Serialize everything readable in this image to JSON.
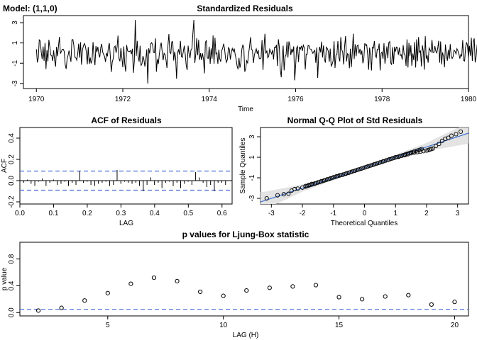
{
  "model_label": "Model: (1,1,0)",
  "colors": {
    "line": "#000000",
    "ref_dash": "#4a6fd8",
    "qq_line": "#3a6fcf",
    "band": "#e3e3e3"
  },
  "chart_data": [
    {
      "id": "std-residuals",
      "type": "line",
      "title": "Standardized Residuals",
      "xlabel": "Time",
      "ylabel": "",
      "xlim": [
        1969.7,
        1980.0
      ],
      "ylim": [
        -3.5,
        3.7
      ],
      "xticks": [
        1970,
        1972,
        1974,
        1976,
        1978,
        1980
      ],
      "yticks": [
        -3,
        -1,
        1,
        3
      ],
      "x_start": 1970.0,
      "x_step": 0.022222,
      "values": [
        0.39,
        -0.92,
        -0.49,
        1.3,
        1.19,
        0.13,
        -0.6,
        0.65,
        -0.77,
        1.0,
        -1.58,
        0.29,
        -0.82,
        1.31,
        0.6,
        -0.21,
        -0.24,
        -0.78,
        0.26,
        -0.73,
        -1.33,
        0.62,
        -0.32,
        0.67,
        1.6,
        -0.05,
        0.15,
        0.38,
        0.38,
        0.16,
        -1.15,
        -1.56,
        -0.61,
        -0.21,
        0.24,
        -0.32,
        -0.86,
        1.31,
        1.34,
        0.76,
        -0.41,
        -0.44,
        -0.69,
        -0.11,
        0.93,
        -0.46,
        1.07,
        -1.15,
        0.33,
        0.72,
        0.95,
        0.69,
        0.13,
        -1.1,
        0.6,
        -1.07,
        -0.44,
        -1.02,
        -0.68,
        1.09,
        -0.41,
        -1.2,
        0.69,
        0.1,
        0.62,
        -0.1,
        -0.43,
        0.53,
        0.91,
        0.11,
        -0.13,
        -0.35,
        -0.87,
        0.01,
        -0.32,
        0.63,
        0.98,
        -0.3,
        -1.86,
        -0.88,
        -0.55,
        0.55,
        0.7,
        0.03,
        0.55,
        1.72,
        -0.54,
        -0.81,
        0.5,
        -0.45,
        -1.4,
        0.66,
        -1.05,
        -1.83,
        0.8,
        0.22,
        0.17,
        0.15,
        0.25,
        -0.1,
        0.43,
        -1.95,
        -0.81,
        3.27,
        -0.27,
        1.21,
        -0.37,
        -0.84,
        0.73,
        -1.24,
        -1.03,
        -0.29,
        -0.66,
        -1.33,
        -0.58,
        0.37,
        -3.0,
        0.47,
        -0.04,
        0.91,
        1.03,
        0.84,
        0.06,
        0.04,
        1.45,
        -1.84,
        -0.59,
        -1.08,
        -0.15,
        0.64,
        1.03,
        0.15,
        -0.71,
        -0.02,
        -0.13,
        -0.68,
        -1.48,
        0.73,
        1.88,
        0.06,
        -0.05,
        1.12,
        1.13,
        -0.74,
        0.14,
        -0.44,
        -2.53,
        -0.06,
        0.38,
        -0.16,
        1.2,
        -0.32,
        -0.43,
        0.15,
        0.73,
        -0.1,
        -1.19,
        -1.67,
        0.73,
        -0.06,
        -0.49,
        0.32,
        0.44,
        1.96,
        3.28,
        -0.98,
        -0.1,
        1.46,
        -0.22,
        1.31,
        -0.67,
        -0.01,
        -0.69,
        -0.03,
        -0.61,
        -2.0,
        1.05,
        1.26,
        -0.48,
        -0.53,
        0.63,
        -1.07,
        0.46,
        -0.55,
        1.74,
        -1.05,
        1.51,
        -0.08,
        0.01,
        -1.07,
        0.34,
        -0.59,
        -0.85,
        0.22,
        0.49,
        0.92,
        0.42,
        -0.53,
        -0.91,
        -0.58,
        0.54,
        0.39,
        -0.63,
        0.06,
        0.46,
        0.16,
        0.45,
        -0.12,
        -0.6,
        -1.26,
        -1.59,
        -0.47,
        -1.44,
        -0.92,
        0.4,
        0.79,
        0.6,
        -1.84,
        -1.55,
        -0.76,
        -0.97,
        -0.1,
        0.66,
        1.57,
        0.34,
        0.31,
        -0.98,
        -0.2,
        0.17,
        0.42,
        -0.07,
        0.31,
        -0.52,
        -0.57,
        -0.48,
        1.28,
        -1.66,
        0.47,
        1.91,
        -0.05,
        0.25,
        -0.46,
        -0.29,
        0.38,
        0.14,
        -0.08,
        0.31,
        -0.63,
        0.57,
        0.52,
        0.81,
        -1.27,
        1.36,
        0.61,
        -1.58,
        -2.39,
        -0.54,
        0.73,
        -1.71,
        -0.36,
        -0.2,
        1.14,
        -0.45,
        1.15,
        0.72,
        -0.19,
        0.42,
        0.06,
        0.66,
        -2.69,
        -1.28,
        0.49,
        0.66,
        -0.88,
        0.61,
        0.41,
        0.71,
        0.21,
        0.78,
        0.54,
        -1.62,
        -0.1,
        -0.12,
        0.76,
        0.72,
        0.4,
        0.39,
        0.17,
        -0.03,
        0.16,
        0.27,
        -0.96,
        0.55,
        -2.45,
        -0.15,
        0.62,
        0.07,
        1.13,
        -0.44,
        0.74,
        -0.6,
        -0.94,
        0.58,
        0.45,
        0.18,
        -0.86,
        0.44,
        -1.28,
        -1.1,
        -0.78,
        1.17,
        -1.47,
        -0.21,
        -0.13,
        1.19,
        -0.42,
        -0.82,
        1.57,
        0.35,
        0.1,
        -1.12,
        0.68,
        1.68,
        -0.82,
        -0.06,
        -0.12,
        -1.5,
        0.43,
        -1.39,
        0.02,
        1.91,
        -0.59,
        0.87,
        -0.32,
        0.69,
        0.79,
        -0.04,
        0.42,
        -0.18,
        0.25,
        -1.01,
        -0.58,
        0.96,
        0.76,
        0.83,
        -0.15,
        -1.65,
        0.53,
        -0.24,
        -1.72,
        0.58,
        0.49,
        1.19,
        -0.23,
        -0.43,
        0.37,
        0.34,
        0.94,
        -1.72,
        -0.03,
        0.1,
        -0.58,
        0.97,
        -1.04,
        -0.21,
        0.66,
        -0.51,
        1.03,
        1.14,
        -0.96,
        -1.16,
        0.58,
        -1.05,
        0.63,
        0.15,
        0.59,
        0.53,
        -0.18,
        0.54,
        -0.24,
        -0.16,
        -0.65,
        0.78,
        -0.13,
        -0.18,
        -1.27,
        1.35,
        -1.43,
        1.01,
        -0.32,
        0.77,
        -1.25,
        -0.04,
        -0.69,
        1.09,
        -1.43,
        1.36,
        -0.8,
        1.58,
        0.03,
        0.25,
        -1.31,
        0.77,
        0.15,
        -1.64,
        1.66,
        -0.55,
        -0.23,
        -0.95,
        0.5,
        0.31,
        0.12,
        1.3,
        0.06,
        0.06,
        0.69,
        0.19,
        0.01,
        0.5,
        1.21,
        -0.95,
        1.15,
        -1.11,
        0.06,
        -0.34,
        -1.39,
        0.85,
        -0.19,
        -0.76,
        0.32,
        -0.58,
        0.88,
        -0.28,
        -0.55,
        -0.34,
        0.28,
        0.17,
        -0.08,
        0.43,
        0.22,
        -0.07,
        -0.54,
        -0.14,
        -0.28,
        1.28,
        -0.74,
        -0.78,
        0.58,
        1.06,
        0.73,
        -0.45,
        0.71,
        -0.26,
        1.51,
        -0.77,
        1.15,
        1.44,
        -0.92,
        -0.32,
        0.82,
        0.94,
        -0.58,
        0.67,
        -0.99,
        -0.11,
        1.24,
        -0.79,
        1.17,
        -0.49,
        -1.54,
        1.27,
        -0.71,
        -0.35,
        -0.26,
        0.29,
        0.09,
        -0.54,
        0.39,
        -0.03,
        0.49,
        0.9,
        -0.54,
        -0.78,
        -0.38,
        0.69,
        0.58,
        -0.72,
        0.16,
        1.31,
        -0.94,
        -0.08,
        0.01,
        0.95,
        -0.29,
        -0.69,
        1.43,
        -1.18,
        0.4,
        -0.93,
        0.38,
        -0.32,
        -1.1,
        0.08,
        0.25,
        0.56,
        1.78,
        -0.72,
        -0.09,
        0.77,
        1.46,
        -0.47,
        0.28,
        -1.39,
        0.54,
        0.34,
        -0.91,
        -0.54,
        0.03,
        1.18,
        -0.19,
        -0.19,
        0.2,
        0.91,
        -0.79,
        -1.14,
        0.95,
        -0.02,
        -1.8,
        -0.33,
        0.28,
        -1.58,
        0.91,
        -0.62,
        0.46,
        0.71,
        -0.69,
        -1.46,
        0.17,
        0.55,
        -0.82,
        0.42,
        0.13,
        -0.36,
        -0.05,
        0.02,
        0.47,
        0.39,
        -0.36,
        0.82,
        -1.72,
        -0.22,
        -1.14,
        1.15,
        -0.08,
        -1.58,
        -0.35,
        0.36,
        0.39,
        0.66,
        -0.31,
        -1.31,
        -0.6,
        -0.13,
        0.06,
        -0.37,
        1.15,
        -0.53,
        -0.41,
        0.44,
        -1.12,
        0.19,
        -0.22,
        -0.14,
        -0.05,
        0.46,
        1.28,
        1.34
      ]
    },
    {
      "id": "acf-residuals",
      "type": "bar",
      "title": "ACF of Residuals",
      "xlabel": "LAG",
      "ylabel": "ACF",
      "xlim": [
        0,
        0.63
      ],
      "ylim": [
        -0.22,
        0.5
      ],
      "xticks": [
        0.0,
        0.1,
        0.2,
        0.3,
        0.4,
        0.5,
        0.6
      ],
      "xtick_labels": [
        "0.0",
        "0.1",
        "0.2",
        "0.3",
        "0.4",
        "0.5",
        "0.6"
      ],
      "yticks": [
        -0.2,
        0.0,
        0.2,
        0.4
      ],
      "ytick_labels": [
        "-0.2",
        "0.0",
        "0.2",
        "0.4"
      ],
      "lag_step": 0.0111,
      "values": [
        -0.02,
        0.01,
        -0.03,
        -0.05,
        -0.01,
        0.02,
        -0.05,
        -0.02,
        0.01,
        -0.04,
        -0.03,
        -0.01,
        -0.05,
        -0.02,
        -0.04,
        0.09,
        -0.02,
        -0.01,
        -0.04,
        -0.05,
        -0.03,
        -0.02,
        -0.01,
        -0.05,
        -0.04,
        0.1,
        -0.03,
        -0.01,
        -0.02,
        -0.03,
        -0.02,
        -0.05,
        -0.1,
        -0.04,
        0.03,
        -0.04,
        -0.02,
        -0.07,
        -0.02,
        -0.01,
        -0.05,
        -0.02,
        -0.07,
        -0.03,
        -0.01,
        -0.04,
        0.08,
        0.03,
        -0.02,
        -0.06,
        -0.04,
        -0.1,
        -0.02,
        -0.02,
        -0.04
      ],
      "conf_bound": 0.09
    },
    {
      "id": "normal-qq",
      "type": "scatter",
      "title": "Normal Q-Q Plot of Std Residuals",
      "xlabel": "Theoretical Quantiles",
      "ylabel": "Sample Quantiles",
      "xlim": [
        -3.35,
        3.35
      ],
      "ylim": [
        -3.55,
        3.9
      ],
      "xticks": [
        -3,
        -2,
        -1,
        0,
        1,
        2,
        3
      ],
      "yticks": [
        -3,
        -1,
        1,
        3
      ],
      "ref_line": {
        "intercept": 0.0,
        "slope": 1.0
      },
      "band_halfwidth_at": {
        "-3.3": 0.9,
        "-2": 0.35,
        "0": 0.1,
        "2": 0.4,
        "3.3": 1.0
      },
      "n": 60,
      "values_x": [
        -3.15,
        -2.8,
        -2.6,
        -2.45,
        -2.35,
        -2.25,
        -2.15,
        -2.0,
        -1.9,
        -1.8,
        -1.7,
        -1.6,
        -1.5,
        -1.4,
        -1.3,
        -1.2,
        -1.1,
        -1.0,
        -0.9,
        -0.8,
        -0.7,
        -0.6,
        -0.5,
        -0.4,
        -0.3,
        -0.2,
        -0.1,
        0.0,
        0.1,
        0.2,
        0.3,
        0.4,
        0.5,
        0.6,
        0.7,
        0.8,
        0.9,
        1.0,
        1.1,
        1.2,
        1.3,
        1.4,
        1.5,
        1.6,
        1.7,
        1.8,
        1.9,
        2.0,
        2.1,
        2.2,
        2.3,
        2.4,
        2.5,
        2.6,
        2.7,
        2.8,
        2.95,
        3.1,
        2.05,
        2.15
      ],
      "values_y": [
        -3.0,
        -2.7,
        -2.6,
        -2.55,
        -2.25,
        -2.1,
        -2.05,
        -1.95,
        -1.8,
        -1.7,
        -1.6,
        -1.55,
        -1.45,
        -1.35,
        -1.25,
        -1.15,
        -1.05,
        -0.95,
        -0.85,
        -0.75,
        -0.7,
        -0.6,
        -0.5,
        -0.4,
        -0.3,
        -0.2,
        -0.1,
        0.0,
        0.1,
        0.2,
        0.3,
        0.4,
        0.5,
        0.6,
        0.7,
        0.8,
        0.9,
        1.0,
        1.05,
        1.15,
        1.2,
        1.3,
        1.4,
        1.45,
        1.5,
        1.55,
        1.6,
        1.65,
        1.75,
        1.85,
        2.1,
        2.3,
        2.6,
        2.8,
        2.9,
        3.1,
        3.25,
        3.5,
        1.7,
        1.8
      ]
    },
    {
      "id": "ljung-box",
      "type": "scatter",
      "title": "p values for Ljung-Box statistic",
      "xlabel": "LAG (H)",
      "ylabel": "p value",
      "xlim": [
        1.2,
        20.6
      ],
      "ylim": [
        -0.05,
        1.05
      ],
      "xticks": [
        5,
        10,
        15,
        20
      ],
      "yticks": [
        0.0,
        0.4,
        0.8
      ],
      "ytick_labels": [
        "0.0",
        "0.4",
        "0.8"
      ],
      "x": [
        2,
        3,
        4,
        5,
        6,
        7,
        8,
        9,
        10,
        11,
        12,
        13,
        14,
        15,
        16,
        17,
        18,
        19,
        20
      ],
      "y": [
        0.03,
        0.07,
        0.18,
        0.29,
        0.43,
        0.52,
        0.47,
        0.31,
        0.25,
        0.33,
        0.37,
        0.39,
        0.41,
        0.23,
        0.2,
        0.24,
        0.26,
        0.12,
        0.16
      ],
      "ref_line_y": 0.05
    }
  ]
}
